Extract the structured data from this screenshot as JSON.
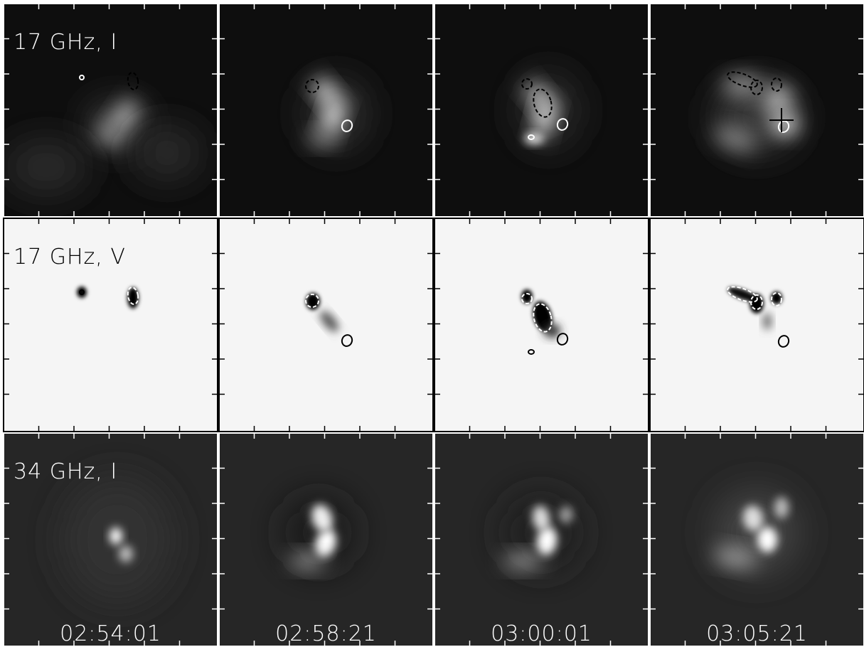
{
  "rows": [
    {
      "label": "17 GHz, I"
    },
    {
      "label": "17 GHz, V"
    },
    {
      "label": "34 GHz, I"
    }
  ],
  "times": [
    "02:54:01",
    "02:58:21",
    "03:00:01",
    "03:05:21"
  ]
}
